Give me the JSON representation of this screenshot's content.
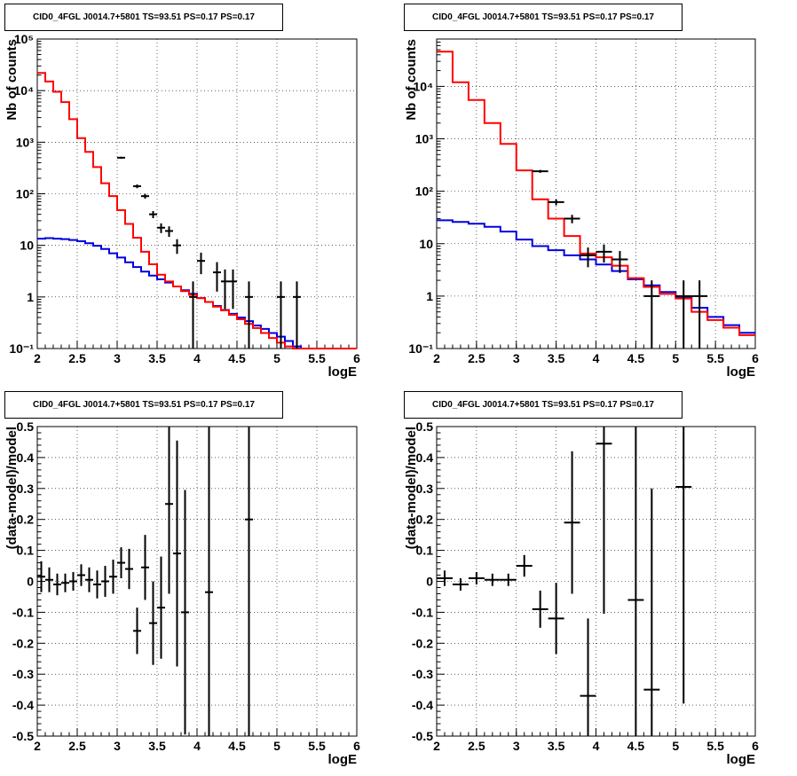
{
  "panel_title": "CID0_4FGL J0014.7+5801 TS=93.51 PS=0.17 PS=0.17",
  "colors": {
    "data": "#000000",
    "total_model": "#ff0000",
    "background_model": "#0000dd"
  },
  "chart_data": [
    {
      "type": "histogram",
      "title": "CID0_4FGL J0014.7+5801 TS=93.51 PS=0.17 PS=0.17",
      "xlabel": "logE",
      "ylabel": "Nb of counts",
      "xlim": [
        2,
        6
      ],
      "ylim": [
        0.1,
        100000
      ],
      "yscale": "log",
      "grid": true,
      "xticks": [
        "2",
        "2.5",
        "3",
        "3.5",
        "4",
        "4.5",
        "5",
        "5.5",
        "6"
      ],
      "yticks": [
        "10⁻¹",
        "1",
        "10",
        "10²",
        "10³",
        "10⁴",
        "10⁵"
      ],
      "model_total": {
        "bin_width": 0.1,
        "y": [
          22000,
          15000,
          9500,
          6000,
          2800,
          1200,
          650,
          330,
          160,
          90,
          48,
          26,
          14,
          7.5,
          4.3,
          2.7,
          2.0,
          1.6,
          1.3,
          1.1,
          0.95,
          0.8,
          0.65,
          0.55,
          0.45,
          0.37,
          0.3,
          0.25,
          0.2,
          0.16,
          0.13,
          0.11,
          0.1,
          0.1,
          0.1,
          0.1,
          0.1,
          0.1,
          0.1,
          0.1
        ]
      },
      "model_background": {
        "bin_width": 0.1,
        "y": [
          13.5,
          13.8,
          13.5,
          13.2,
          12.7,
          12.0,
          11.0,
          9.8,
          8.5,
          7.0,
          5.8,
          4.7,
          3.8,
          3.1,
          2.6,
          2.2,
          1.9,
          1.6,
          1.35,
          1.15,
          0.95,
          0.8,
          0.67,
          0.56,
          0.47,
          0.4,
          0.34,
          0.28,
          0.24,
          0.2,
          0.17,
          0.14,
          0.11,
          0.1,
          0.1,
          0.1,
          0.1,
          0.1,
          0.1,
          0.1
        ]
      },
      "points": [
        {
          "x": 3.05,
          "y": 500
        },
        {
          "x": 3.25,
          "y": 140
        },
        {
          "x": 3.35,
          "y": 90
        },
        {
          "x": 3.45,
          "y": 40
        },
        {
          "x": 3.55,
          "y": 22
        },
        {
          "x": 3.65,
          "y": 19
        },
        {
          "x": 3.75,
          "y": 10
        },
        {
          "x": 3.95,
          "y": 1
        },
        {
          "x": 4.05,
          "y": 5
        },
        {
          "x": 4.25,
          "y": 3
        },
        {
          "x": 4.35,
          "y": 2
        },
        {
          "x": 4.45,
          "y": 2
        },
        {
          "x": 4.65,
          "y": 1
        },
        {
          "x": 5.05,
          "y": 1
        },
        {
          "x": 5.25,
          "y": 1
        }
      ]
    },
    {
      "type": "histogram",
      "title": "CID0_4FGL J0014.7+5801 TS=93.51 PS=0.17 PS=0.17",
      "xlabel": "logE",
      "ylabel": "Nb of counts",
      "xlim": [
        2,
        6
      ],
      "ylim": [
        0.1,
        80000
      ],
      "yscale": "log",
      "grid": true,
      "xticks": [
        "2",
        "2.5",
        "3",
        "3.5",
        "4",
        "4.5",
        "5",
        "5.5",
        "6"
      ],
      "yticks": [
        "10⁻¹",
        "1",
        "10",
        "10²",
        "10³",
        "10⁴"
      ],
      "model_total": {
        "bin_width": 0.2,
        "y": [
          46000,
          12000,
          5500,
          2000,
          800,
          250,
          70,
          30,
          14,
          6.5,
          5.5,
          3.8,
          2.2,
          1.5,
          1.1,
          0.9,
          0.5,
          0.35,
          0.25,
          0.18
        ]
      },
      "model_background": {
        "bin_width": 0.2,
        "y": [
          28,
          26,
          24,
          21,
          17,
          12,
          9,
          7.5,
          6,
          5,
          4,
          3,
          2.1,
          1.6,
          1.2,
          0.95,
          0.6,
          0.4,
          0.28,
          0.2
        ]
      },
      "points": [
        {
          "x": 3.3,
          "y": 240
        },
        {
          "x": 3.5,
          "y": 62
        },
        {
          "x": 3.7,
          "y": 30
        },
        {
          "x": 3.9,
          "y": 6
        },
        {
          "x": 4.1,
          "y": 7
        },
        {
          "x": 4.3,
          "y": 5
        },
        {
          "x": 4.7,
          "y": 1
        },
        {
          "x": 5.1,
          "y": 1
        },
        {
          "x": 5.3,
          "y": 1
        }
      ]
    },
    {
      "type": "scatter",
      "title": "CID0_4FGL J0014.7+5801 TS=93.51 PS=0.17 PS=0.17",
      "xlabel": "logE",
      "ylabel": "(data-model)/model",
      "xlim": [
        2,
        6
      ],
      "ylim": [
        -0.5,
        0.5
      ],
      "grid": true,
      "xticks": [
        "2",
        "2.5",
        "3",
        "3.5",
        "4",
        "4.5",
        "5",
        "5.5",
        "6"
      ],
      "yticks": [
        "-0.5",
        "-0.4",
        "-0.3",
        "-0.2",
        "-0.1",
        "0",
        "0.1",
        "0.2",
        "0.3",
        "0.4",
        "0.5"
      ],
      "x_halfwidth": 0.05,
      "points": [
        {
          "x": 2.05,
          "y": 0.015,
          "err": 0.05
        },
        {
          "x": 2.15,
          "y": 0.005,
          "err": 0.04
        },
        {
          "x": 2.25,
          "y": -0.01,
          "err": 0.035
        },
        {
          "x": 2.35,
          "y": -0.005,
          "err": 0.03
        },
        {
          "x": 2.45,
          "y": 0.0,
          "err": 0.03
        },
        {
          "x": 2.55,
          "y": 0.02,
          "err": 0.035
        },
        {
          "x": 2.65,
          "y": 0.005,
          "err": 0.04
        },
        {
          "x": 2.75,
          "y": -0.01,
          "err": 0.045
        },
        {
          "x": 2.85,
          "y": 0.0,
          "err": 0.05
        },
        {
          "x": 2.95,
          "y": 0.015,
          "err": 0.055
        },
        {
          "x": 3.05,
          "y": 0.06,
          "err": 0.05
        },
        {
          "x": 3.15,
          "y": 0.04,
          "err": 0.065
        },
        {
          "x": 3.25,
          "y": -0.16,
          "err": 0.075
        },
        {
          "x": 3.35,
          "y": 0.045,
          "err": 0.105
        },
        {
          "x": 3.45,
          "y": -0.135,
          "err": 0.135
        },
        {
          "x": 3.55,
          "y": -0.085,
          "err": 0.165
        },
        {
          "x": 3.65,
          "y": 0.25,
          "err": 0.29
        },
        {
          "x": 3.75,
          "y": 0.09,
          "err": 0.365
        },
        {
          "x": 3.85,
          "y": -0.1,
          "err": 0.395
        },
        {
          "x": 4.15,
          "y": -0.035,
          "err": 0.6
        },
        {
          "x": 4.65,
          "y": 0.2,
          "err": 0.7
        }
      ]
    },
    {
      "type": "scatter",
      "title": "CID0_4FGL J0014.7+5801 TS=93.51 PS=0.17 PS=0.17",
      "xlabel": "logE",
      "ylabel": "(data-model)/model",
      "xlim": [
        2,
        6
      ],
      "ylim": [
        -0.5,
        0.5
      ],
      "grid": true,
      "xticks": [
        "2",
        "2.5",
        "3",
        "3.5",
        "4",
        "4.5",
        "5",
        "5.5",
        "6"
      ],
      "yticks": [
        "-0.5",
        "-0.4",
        "-0.3",
        "-0.2",
        "-0.1",
        "0",
        "0.1",
        "0.2",
        "0.3",
        "0.4",
        "0.5"
      ],
      "x_halfwidth": 0.1,
      "points": [
        {
          "x": 2.1,
          "y": 0.01,
          "err": 0.025
        },
        {
          "x": 2.3,
          "y": -0.01,
          "err": 0.02
        },
        {
          "x": 2.5,
          "y": 0.01,
          "err": 0.02
        },
        {
          "x": 2.7,
          "y": 0.005,
          "err": 0.02
        },
        {
          "x": 2.9,
          "y": 0.005,
          "err": 0.02
        },
        {
          "x": 3.1,
          "y": 0.05,
          "err": 0.035
        },
        {
          "x": 3.3,
          "y": -0.09,
          "err": 0.06
        },
        {
          "x": 3.5,
          "y": -0.12,
          "err": 0.115
        },
        {
          "x": 3.7,
          "y": 0.19,
          "err": 0.23
        },
        {
          "x": 3.9,
          "y": -0.37,
          "err": 0.25
        },
        {
          "x": 4.1,
          "y": 0.445,
          "err": 0.55
        },
        {
          "x": 4.5,
          "y": -0.06,
          "err": 0.6
        },
        {
          "x": 4.7,
          "y": -0.35,
          "err": 0.65
        },
        {
          "x": 5.1,
          "y": 0.305,
          "err": 0.7
        }
      ]
    }
  ]
}
